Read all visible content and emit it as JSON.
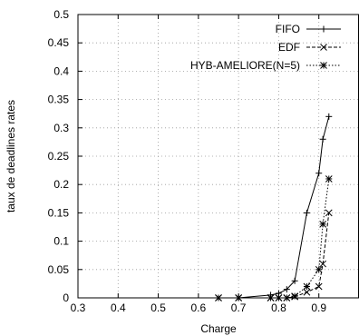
{
  "chart_data": {
    "type": "line",
    "xlabel": "Charge",
    "ylabel": "taux de deadlines rates",
    "xlim": [
      0.3,
      1.0
    ],
    "ylim": [
      0,
      0.5
    ],
    "x_ticks": [
      "0.3",
      "0.4",
      "0.5",
      "0.6",
      "0.7",
      "0.8",
      "0.9"
    ],
    "y_ticks": [
      "0",
      "0.05",
      "0.1",
      "0.15",
      "0.2",
      "0.25",
      "0.3",
      "0.35",
      "0.4",
      "0.45",
      "0.5"
    ],
    "grid": true,
    "legend_position": "top-right",
    "series": [
      {
        "name": "FIFO",
        "line_style": "solid",
        "marker": "plus",
        "x": [
          0.65,
          0.7,
          0.78,
          0.8,
          0.82,
          0.84,
          0.87,
          0.9,
          0.91,
          0.925
        ],
        "y": [
          0.0,
          0.0,
          0.005,
          0.008,
          0.015,
          0.03,
          0.15,
          0.22,
          0.28,
          0.32
        ]
      },
      {
        "name": "EDF",
        "line_style": "dashed",
        "marker": "x",
        "x": [
          0.65,
          0.7,
          0.78,
          0.8,
          0.82,
          0.84,
          0.87,
          0.9,
          0.91,
          0.925
        ],
        "y": [
          0.0,
          0.0,
          0.0,
          0.0,
          0.0,
          0.002,
          0.01,
          0.02,
          0.06,
          0.15
        ]
      },
      {
        "name": "HYB-AMELIORE(N=5)",
        "line_style": "dotted",
        "marker": "asterisk",
        "x": [
          0.65,
          0.7,
          0.78,
          0.8,
          0.82,
          0.84,
          0.87,
          0.9,
          0.91,
          0.925
        ],
        "y": [
          0.0,
          0.0,
          0.0,
          0.0,
          0.0,
          0.003,
          0.02,
          0.05,
          0.13,
          0.21
        ]
      }
    ]
  }
}
